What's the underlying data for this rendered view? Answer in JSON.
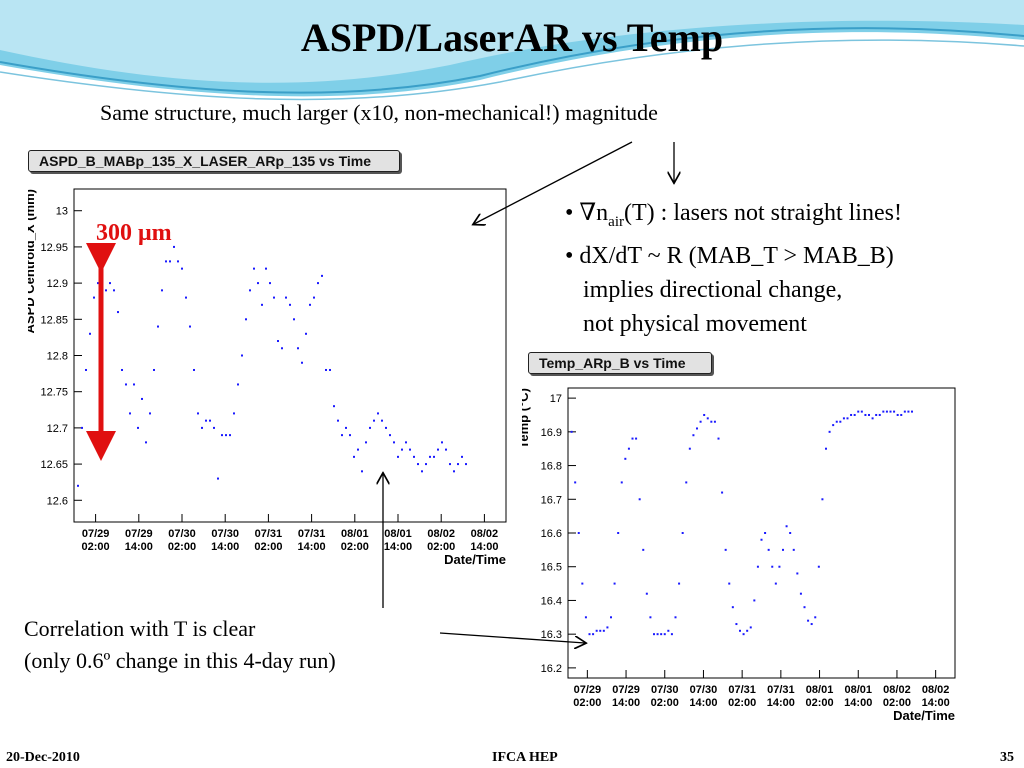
{
  "slide": {
    "title": "ASPD/LaserAR vs Temp",
    "subtitle": "Same structure, much larger (x10, non-mechanical!) magnitude",
    "bullets": [
      {
        "prefix": "• ∇n",
        "sub": "air",
        "rest": "(T) : lasers not straight lines!"
      },
      {
        "text": "• dX/dT ~ R (MAB_T > MAB_B)"
      },
      {
        "text": "implies directional change,"
      },
      {
        "text": "not physical movement"
      }
    ],
    "annotation": "300 μm",
    "correlation": [
      "Correlation with T is clear",
      "(only 0.6º change in this 4-day run)"
    ],
    "footer": {
      "date": "20-Dec-2010",
      "org": "IFCA HEP",
      "page": "35"
    },
    "colors": {
      "marker": "#1a1aff",
      "arrow_red": "#e01010",
      "header_blue": "#5bb8d8"
    }
  },
  "chart_data": [
    {
      "type": "scatter",
      "title": "ASPD_B_MABp_135_X_LASER_ARp_135 vs Time",
      "xlabel": "Date/Time",
      "ylabel": "ASPD Centroid_X (mm)",
      "xticks": [
        [
          "07/29",
          "02:00"
        ],
        [
          "07/29",
          "14:00"
        ],
        [
          "07/30",
          "02:00"
        ],
        [
          "07/30",
          "14:00"
        ],
        [
          "07/31",
          "02:00"
        ],
        [
          "07/31",
          "14:00"
        ],
        [
          "08/01",
          "02:00"
        ],
        [
          "08/01",
          "14:00"
        ],
        [
          "08/02",
          "02:00"
        ],
        [
          "08/02",
          "14:00"
        ]
      ],
      "yticks": [
        "12.6",
        "12.65",
        "12.7",
        "12.75",
        "12.8",
        "12.85",
        "12.9",
        "12.95",
        "13"
      ],
      "ylim": [
        12.57,
        13.03
      ],
      "xlim": [
        0,
        108
      ],
      "x": [
        1,
        2,
        3,
        4,
        5,
        6,
        7,
        8,
        9,
        10,
        11,
        12,
        13,
        14,
        15,
        16,
        17,
        18,
        19,
        20,
        21,
        22,
        23,
        24,
        25,
        26,
        27,
        28,
        29,
        30,
        31,
        32,
        33,
        34,
        35,
        36,
        37,
        38,
        39,
        40,
        41,
        42,
        43,
        44,
        45,
        46,
        47,
        48,
        49,
        50,
        51,
        52,
        53,
        54,
        55,
        56,
        57,
        58,
        59,
        60,
        61,
        62,
        63,
        64,
        65,
        66,
        67,
        68,
        69,
        70,
        71,
        72,
        73,
        74,
        75,
        76,
        77,
        78,
        79,
        80,
        81,
        82,
        83,
        84,
        85,
        86,
        87,
        88,
        89,
        90,
        91,
        92,
        93,
        94,
        95,
        96,
        97,
        98
      ],
      "y": [
        12.62,
        12.7,
        12.78,
        12.83,
        12.88,
        12.9,
        12.9,
        12.89,
        12.9,
        12.89,
        12.86,
        12.78,
        12.76,
        12.72,
        12.76,
        12.7,
        12.74,
        12.68,
        12.72,
        12.78,
        12.84,
        12.89,
        12.93,
        12.93,
        12.95,
        12.93,
        12.92,
        12.88,
        12.84,
        12.78,
        12.72,
        12.7,
        12.71,
        12.71,
        12.7,
        12.63,
        12.69,
        12.69,
        12.69,
        12.72,
        12.76,
        12.8,
        12.85,
        12.89,
        12.92,
        12.9,
        12.87,
        12.92,
        12.9,
        12.88,
        12.82,
        12.81,
        12.88,
        12.87,
        12.85,
        12.81,
        12.79,
        12.83,
        12.87,
        12.88,
        12.9,
        12.91,
        12.78,
        12.78,
        12.73,
        12.71,
        12.69,
        12.7,
        12.69,
        12.66,
        12.67,
        12.64,
        12.68,
        12.7,
        12.71,
        12.72,
        12.71,
        12.7,
        12.69,
        12.68,
        12.66,
        12.67,
        12.68,
        12.67,
        12.66,
        12.65,
        12.64,
        12.65,
        12.66,
        12.66,
        12.67,
        12.68,
        12.67,
        12.65,
        12.64,
        12.65,
        12.66,
        12.65
      ]
    },
    {
      "type": "scatter",
      "title": "Temp_ARp_B vs Time",
      "xlabel": "Date/Time",
      "ylabel": "Temp (°C)",
      "xticks": [
        [
          "07/29",
          "02:00"
        ],
        [
          "07/29",
          "14:00"
        ],
        [
          "07/30",
          "02:00"
        ],
        [
          "07/30",
          "14:00"
        ],
        [
          "07/31",
          "02:00"
        ],
        [
          "07/31",
          "14:00"
        ],
        [
          "08/01",
          "02:00"
        ],
        [
          "08/01",
          "14:00"
        ],
        [
          "08/02",
          "02:00"
        ],
        [
          "08/02",
          "14:00"
        ]
      ],
      "yticks": [
        "16.2",
        "16.3",
        "16.4",
        "16.5",
        "16.6",
        "16.7",
        "16.8",
        "16.9",
        "17"
      ],
      "ylim": [
        16.17,
        17.03
      ],
      "xlim": [
        0,
        108
      ],
      "x": [
        1,
        2,
        3,
        4,
        5,
        6,
        7,
        8,
        9,
        10,
        11,
        12,
        13,
        14,
        15,
        16,
        17,
        18,
        19,
        20,
        21,
        22,
        23,
        24,
        25,
        26,
        27,
        28,
        29,
        30,
        31,
        32,
        33,
        34,
        35,
        36,
        37,
        38,
        39,
        40,
        41,
        42,
        43,
        44,
        45,
        46,
        47,
        48,
        49,
        50,
        51,
        52,
        53,
        54,
        55,
        56,
        57,
        58,
        59,
        60,
        61,
        62,
        63,
        64,
        65,
        66,
        67,
        68,
        69,
        70,
        71,
        72,
        73,
        74,
        75,
        76,
        77,
        78,
        79,
        80,
        81,
        82,
        83,
        84,
        85,
        86,
        87,
        88,
        89,
        90,
        91,
        92,
        93,
        94,
        95,
        96
      ],
      "y": [
        16.9,
        16.75,
        16.6,
        16.45,
        16.35,
        16.3,
        16.3,
        16.31,
        16.31,
        16.31,
        16.32,
        16.35,
        16.45,
        16.6,
        16.75,
        16.82,
        16.85,
        16.88,
        16.88,
        16.7,
        16.55,
        16.42,
        16.35,
        16.3,
        16.3,
        16.3,
        16.3,
        16.31,
        16.3,
        16.35,
        16.45,
        16.6,
        16.75,
        16.85,
        16.89,
        16.91,
        16.93,
        16.95,
        16.94,
        16.93,
        16.93,
        16.88,
        16.72,
        16.55,
        16.45,
        16.38,
        16.33,
        16.31,
        16.3,
        16.31,
        16.32,
        16.4,
        16.5,
        16.58,
        16.6,
        16.55,
        16.5,
        16.45,
        16.5,
        16.55,
        16.62,
        16.6,
        16.55,
        16.48,
        16.42,
        16.38,
        16.34,
        16.33,
        16.35,
        16.5,
        16.7,
        16.85,
        16.9,
        16.92,
        16.93,
        16.93,
        16.94,
        16.94,
        16.95,
        16.95,
        16.96,
        16.96,
        16.95,
        16.95,
        16.94,
        16.95,
        16.95,
        16.96,
        16.96,
        16.96,
        16.96,
        16.95,
        16.95,
        16.96,
        16.96,
        16.96
      ]
    }
  ]
}
